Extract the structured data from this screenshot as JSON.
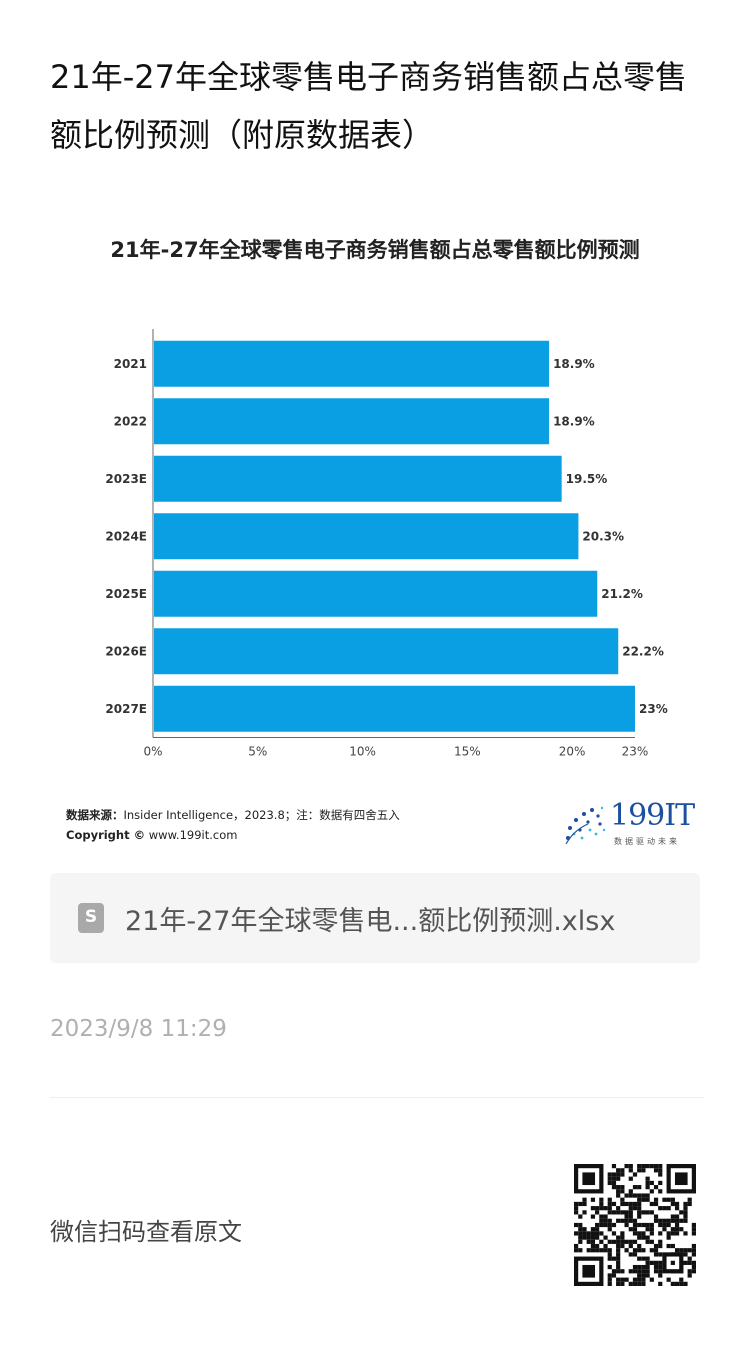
{
  "article": {
    "title": "21年-27年全球零售电子商务销售额占总零售额比例预测（附原数据表）"
  },
  "chart": {
    "source_label": "数据来源：",
    "source_text": "Insider Intelligence，2023.8；注：数据有四舍五入",
    "copyright_label": "Copyright ©",
    "copyright_text": "www.199it.com",
    "brand": "199IT",
    "brand_sub": "数据驱动未来"
  },
  "chart_data": {
    "type": "bar",
    "orientation": "horizontal",
    "title": "21年-27年全球零售电子商务销售额占总零售额比例预测",
    "categories": [
      "2021",
      "2022",
      "2023E",
      "2024E",
      "2025E",
      "2026E",
      "2027E"
    ],
    "values": [
      18.9,
      18.9,
      19.5,
      20.3,
      21.2,
      22.2,
      23
    ],
    "value_labels": [
      "18.9%",
      "18.9%",
      "19.5%",
      "20.3%",
      "21.2%",
      "22.2%",
      "23%"
    ],
    "x_ticks": [
      "0%",
      "5%",
      "10%",
      "15%",
      "20%",
      "23%"
    ],
    "x_tick_values": [
      0,
      5,
      10,
      15,
      20,
      23
    ],
    "xlim": [
      0,
      23
    ],
    "bar_color": "#0a9fe3",
    "grid": false,
    "legend": "none"
  },
  "file": {
    "icon": "document-icon",
    "icon_letter": "S",
    "name": "21年-27年全球零售电...额比例预测.xlsx"
  },
  "timestamp": "2023/9/8 11:29",
  "footer": {
    "read_original": "微信扫码查看原文",
    "qr_icon": "qr-code-icon"
  }
}
